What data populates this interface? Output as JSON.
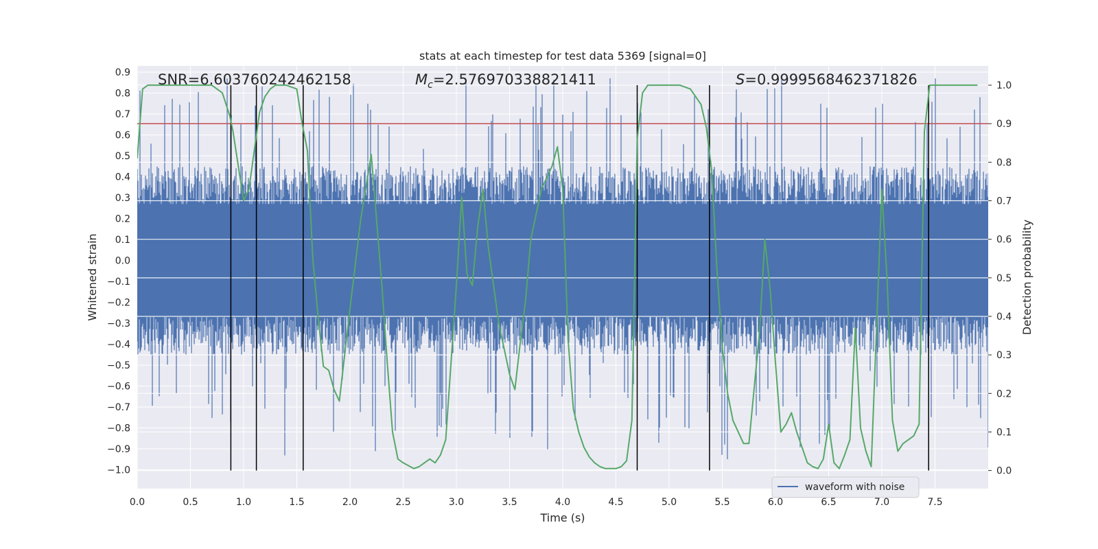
{
  "chart_data": {
    "type": "line",
    "title": "stats at each timestep for test data 5369 [signal=0]",
    "xlabel": "Time (s)",
    "ylabel": "Whitened strain",
    "y2label": "Detection probability",
    "xlim": [
      0.0,
      8.0
    ],
    "ylim": [
      -1.09,
      0.93
    ],
    "y2lim": [
      -0.047,
      1.05
    ],
    "xticks": [
      "0.0",
      "0.5",
      "1.0",
      "1.5",
      "2.0",
      "2.5",
      "3.0",
      "3.5",
      "4.0",
      "4.5",
      "5.0",
      "5.5",
      "6.0",
      "6.5",
      "7.0",
      "7.5"
    ],
    "yticks": [
      "0.9",
      "0.8",
      "0.7",
      "0.6",
      "0.5",
      "0.4",
      "0.3",
      "0.2",
      "0.1",
      "0.0",
      "−0.1",
      "−0.2",
      "−0.3",
      "−0.4",
      "−0.5",
      "−0.6",
      "−0.7",
      "−0.8",
      "−0.9",
      "−1.0"
    ],
    "y2ticks": [
      "1.0",
      "0.9",
      "0.8",
      "0.7",
      "0.6",
      "0.5",
      "0.4",
      "0.3",
      "0.2",
      "0.1",
      "0.0"
    ],
    "grid": true,
    "legend": {
      "position": "lower-right",
      "entries": [
        "waveform with noise"
      ]
    },
    "annotations": {
      "snr": "SNR=6.603760242462158",
      "mc_symbol": "M",
      "mc_sub": "c",
      "mc_value": "=2.576970338821411",
      "s_symbol": "S",
      "s_value": "=0.9999568462371826"
    },
    "threshold": 0.9,
    "vlines": [
      0.88,
      1.12,
      1.56,
      4.7,
      5.38,
      7.44
    ],
    "vline_top": 1.0,
    "vline_bottom": 0.0,
    "series": [
      {
        "name": "waveform with noise",
        "axis": "left",
        "color": "#4c72b0",
        "description": "dense noisy strain waveform, roughly symmetric about 0",
        "envelope_typical": 0.45,
        "envelope_peak_pos": 0.87,
        "envelope_peak_neg": -0.95
      },
      {
        "axis": "right",
        "color": "#55a868",
        "x": [
          0.0,
          0.05,
          0.1,
          0.2,
          0.4,
          0.6,
          0.7,
          0.8,
          0.87,
          0.9,
          1.0,
          1.05,
          1.1,
          1.15,
          1.2,
          1.25,
          1.3,
          1.4,
          1.5,
          1.55,
          1.6,
          1.65,
          1.7,
          1.75,
          1.8,
          1.85,
          1.9,
          2.0,
          2.1,
          2.2,
          2.3,
          2.35,
          2.4,
          2.45,
          2.5,
          2.6,
          2.65,
          2.7,
          2.75,
          2.8,
          2.85,
          2.9,
          3.0,
          3.05,
          3.1,
          3.15,
          3.2,
          3.25,
          3.3,
          3.4,
          3.5,
          3.55,
          3.6,
          3.65,
          3.7,
          3.8,
          3.9,
          3.95,
          4.0,
          4.05,
          4.1,
          4.15,
          4.2,
          4.25,
          4.3,
          4.35,
          4.4,
          4.45,
          4.5,
          4.55,
          4.6,
          4.65,
          4.7,
          4.75,
          4.8,
          4.9,
          5.0,
          5.1,
          5.2,
          5.3,
          5.35,
          5.4,
          5.45,
          5.5,
          5.55,
          5.6,
          5.7,
          5.75,
          5.85,
          5.9,
          5.95,
          6.0,
          6.05,
          6.1,
          6.15,
          6.2,
          6.25,
          6.3,
          6.35,
          6.4,
          6.45,
          6.5,
          6.55,
          6.6,
          6.65,
          6.7,
          6.75,
          6.8,
          6.85,
          6.9,
          6.95,
          7.0,
          7.05,
          7.1,
          7.15,
          7.2,
          7.25,
          7.3,
          7.35,
          7.4,
          7.45,
          7.5,
          7.6,
          7.7,
          7.8,
          7.9
        ],
        "y": [
          0.81,
          0.99,
          1.0,
          1.0,
          1.0,
          1.0,
          1.0,
          0.98,
          0.92,
          0.88,
          0.7,
          0.73,
          0.83,
          0.93,
          0.97,
          0.99,
          1.0,
          1.0,
          0.99,
          0.9,
          0.83,
          0.55,
          0.4,
          0.27,
          0.26,
          0.21,
          0.18,
          0.42,
          0.65,
          0.82,
          0.48,
          0.28,
          0.1,
          0.03,
          0.02,
          0.005,
          0.01,
          0.02,
          0.03,
          0.02,
          0.04,
          0.08,
          0.48,
          0.71,
          0.51,
          0.48,
          0.63,
          0.73,
          0.58,
          0.38,
          0.25,
          0.21,
          0.33,
          0.44,
          0.6,
          0.73,
          0.79,
          0.84,
          0.73,
          0.34,
          0.16,
          0.1,
          0.06,
          0.035,
          0.02,
          0.01,
          0.005,
          0.005,
          0.005,
          0.01,
          0.025,
          0.13,
          0.86,
          0.98,
          1.0,
          1.0,
          1.0,
          1.0,
          0.99,
          0.95,
          0.89,
          0.78,
          0.52,
          0.32,
          0.2,
          0.13,
          0.07,
          0.07,
          0.36,
          0.6,
          0.47,
          0.28,
          0.1,
          0.12,
          0.15,
          0.1,
          0.06,
          0.02,
          0.01,
          0.005,
          0.03,
          0.12,
          0.02,
          0.005,
          0.04,
          0.08,
          0.37,
          0.11,
          0.05,
          0.01,
          0.37,
          0.73,
          0.49,
          0.13,
          0.05,
          0.07,
          0.08,
          0.09,
          0.12,
          0.88,
          1.0,
          1.0,
          1.0,
          1.0,
          1.0,
          1.0
        ]
      }
    ]
  }
}
